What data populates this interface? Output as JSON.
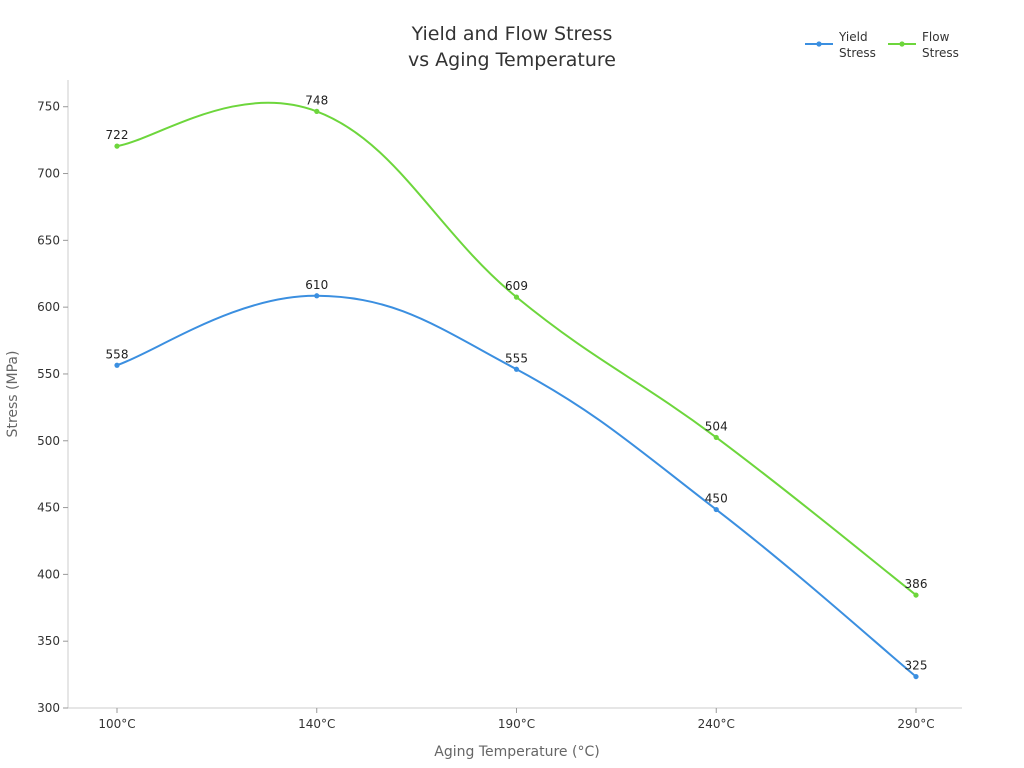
{
  "chart_data": {
    "type": "line",
    "title": [
      "Yield and Flow Stress",
      "vs Aging Temperature"
    ],
    "xlabel": "Aging Temperature (°C)",
    "ylabel": "Stress (MPa)",
    "categories": [
      "100°C",
      "140°C",
      "190°C",
      "240°C",
      "290°C"
    ],
    "ylim": [
      300,
      770
    ],
    "yticks": [
      "300",
      "350",
      "400",
      "450",
      "500",
      "550",
      "600",
      "650",
      "700",
      "750"
    ],
    "series": [
      {
        "name": [
          "Yield",
          "Stress"
        ],
        "color": "#3b8fe0",
        "values": [
          558,
          610,
          555,
          450,
          325
        ],
        "labels": [
          "558",
          "610",
          "555",
          "450",
          "325"
        ]
      },
      {
        "name": [
          "Flow",
          "Stress"
        ],
        "color": "#6dd63c",
        "values": [
          722,
          748,
          609,
          504,
          386
        ],
        "labels": [
          "722",
          "748",
          "609",
          "504",
          "386"
        ]
      }
    ],
    "legend_position": "top-right",
    "grid": false
  }
}
